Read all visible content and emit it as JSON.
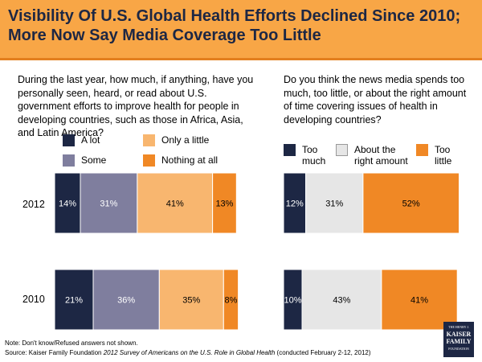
{
  "title": "Visibility Of U.S. Global Health Efforts Declined Since 2010; More Now Say Media Coverage Too Little",
  "colors": {
    "dark_navy": "#1d2744",
    "gray_blue": "#7f7e9e",
    "light_orange": "#f8b66f",
    "orange": "#f08825",
    "light_gray": "#e6e6e6"
  },
  "chart_data": [
    {
      "type": "bar",
      "stacked": true,
      "orientation": "horizontal",
      "title": "During the last year, how much, if anything, have you personally seen, heard, or read about U.S. government efforts to improve health for people in developing countries, such as those in Africa, Asia, and Latin America?",
      "categories": [
        "2012",
        "2010"
      ],
      "series": [
        {
          "name": "A lot",
          "values": [
            14,
            21
          ],
          "labels": [
            "14%",
            "21%"
          ],
          "color": "#1d2744"
        },
        {
          "name": "Some",
          "values": [
            31,
            36
          ],
          "labels": [
            "31%",
            "36%"
          ],
          "color": "#7f7e9e"
        },
        {
          "name": "Only a little",
          "values": [
            41,
            35
          ],
          "labels": [
            "41%",
            "35%"
          ],
          "color": "#f8b66f"
        },
        {
          "name": "Nothing at all",
          "values": [
            13,
            8
          ],
          "labels": [
            "13%",
            "8%"
          ],
          "color": "#f08825"
        }
      ]
    },
    {
      "type": "bar",
      "stacked": true,
      "orientation": "horizontal",
      "title": "Do you think the news media spends too much, too little, or about the right amount of time covering issues of health in developing countries?",
      "categories": [
        "2012",
        "2010"
      ],
      "series": [
        {
          "name": "Too much",
          "values": [
            12,
            10
          ],
          "labels": [
            "12%",
            "10%"
          ],
          "color": "#1d2744"
        },
        {
          "name": "About the right amount",
          "values": [
            31,
            43
          ],
          "labels": [
            "31%",
            "43%"
          ],
          "color": "#e6e6e6"
        },
        {
          "name": "Too little",
          "values": [
            52,
            41
          ],
          "labels": [
            "52%",
            "41%"
          ],
          "color": "#f08825"
        }
      ]
    }
  ],
  "notes": {
    "line1": "Note: Don't know/Refused answers not shown.",
    "source_prefix": "Source: Kaiser Family Foundation ",
    "source_italic": "2012 Survey of Americans on the U.S. Role in Global Health",
    "source_suffix": " (conducted February 2-12, 2012)"
  },
  "logo": {
    "line1": "THE HENRY J.",
    "line2": "KAISER",
    "line3": "FAMILY",
    "line4": "FOUNDATION"
  }
}
